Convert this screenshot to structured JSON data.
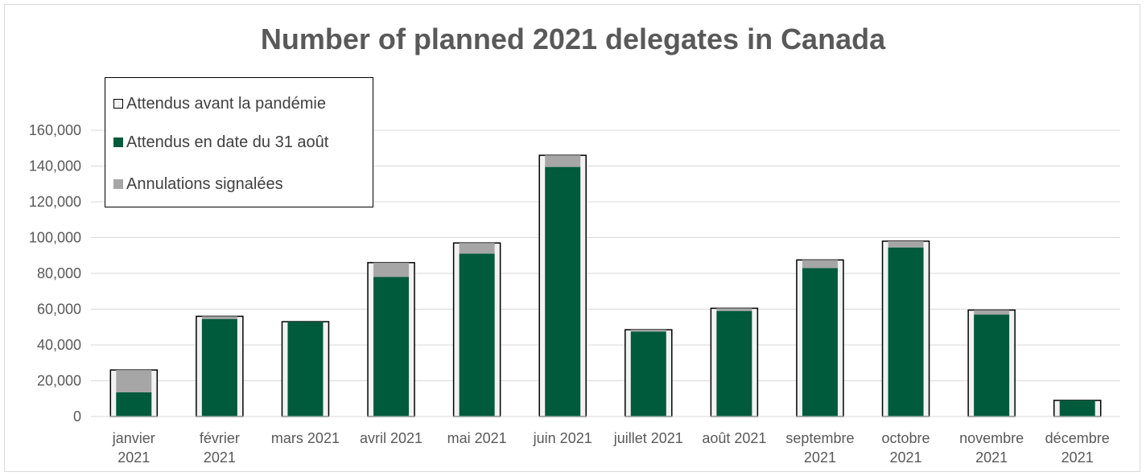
{
  "chart_data": {
    "type": "bar",
    "title": "Number of planned 2021 delegates in Canada",
    "categories": [
      [
        "janvier",
        "2021"
      ],
      [
        "février",
        "2021"
      ],
      [
        "mars 2021"
      ],
      [
        "avril 2021"
      ],
      [
        "mai 2021"
      ],
      [
        "juin 2021"
      ],
      [
        "juillet 2021"
      ],
      [
        "août 2021"
      ],
      [
        "septembre",
        "2021"
      ],
      [
        "octobre",
        "2021"
      ],
      [
        "novembre",
        "2021"
      ],
      [
        "décembre",
        "2021"
      ]
    ],
    "series": [
      {
        "name": "Attendus avant la pandémie",
        "color": "#f2f2f2",
        "border": "#000000",
        "values": [
          26000,
          56000,
          53000,
          86000,
          97000,
          146000,
          48500,
          60500,
          87500,
          98000,
          59500,
          9000
        ]
      },
      {
        "name": "Attendus en date du 31 août",
        "color": "#005a3c",
        "values": [
          13500,
          54500,
          53000,
          78000,
          91000,
          139500,
          47500,
          59000,
          83000,
          94500,
          57000,
          9000
        ]
      },
      {
        "name": "Annulations signalées",
        "color": "#a6a6a6",
        "values": [
          12500,
          1500,
          0,
          8000,
          6000,
          6500,
          1000,
          1500,
          4500,
          3500,
          2500,
          0
        ]
      }
    ],
    "ylim": [
      0,
      160000
    ],
    "yticks": [
      "0",
      "20,000",
      "40,000",
      "60,000",
      "80,000",
      "100,000",
      "120,000",
      "140,000",
      "160,000"
    ],
    "grid": true,
    "legend_position": "top-left"
  }
}
